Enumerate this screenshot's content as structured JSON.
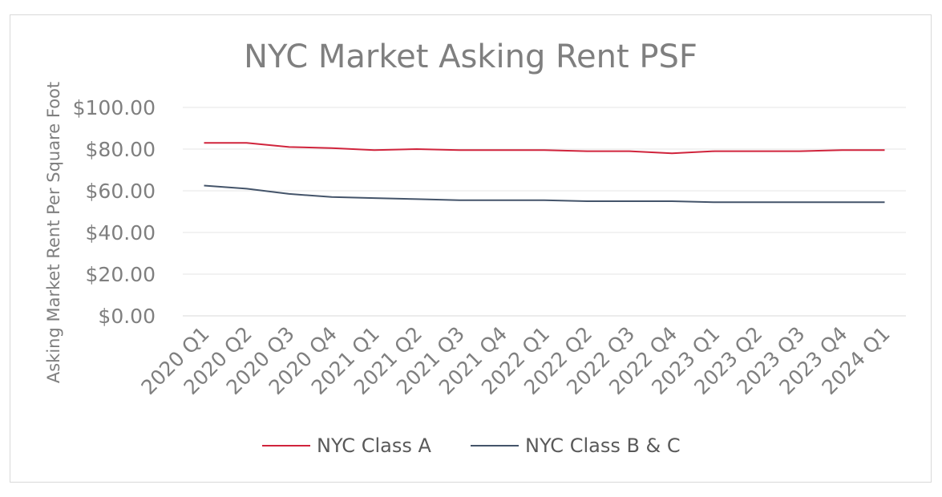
{
  "chart_data": {
    "type": "line",
    "title": "NYC Market Asking Rent PSF",
    "xlabel": "",
    "ylabel": "Asking Market Rent Per Square Foot",
    "categories": [
      "2020 Q1",
      "2020 Q2",
      "2020 Q3",
      "2020 Q4",
      "2021 Q1",
      "2021 Q2",
      "2021 Q3",
      "2021 Q4",
      "2022 Q1",
      "2022 Q2",
      "2022 Q3",
      "2022 Q4",
      "2023 Q1",
      "2023 Q2",
      "2023 Q3",
      "2023 Q4",
      "2024 Q1"
    ],
    "y_ticks": [
      "$0.00",
      "$20.00",
      "$40.00",
      "$60.00",
      "$80.00",
      "$100.00"
    ],
    "ylim": [
      0,
      100
    ],
    "grid": true,
    "legend_position": "bottom",
    "series": [
      {
        "name": "NYC Class A",
        "color": "#d0243c",
        "values": [
          83,
          83,
          81,
          80.5,
          79.5,
          80,
          79.5,
          79.5,
          79.5,
          79,
          79,
          78,
          79,
          79,
          79,
          79.5,
          79.5
        ]
      },
      {
        "name": "NYC Class B & C",
        "color": "#44546a",
        "values": [
          62.5,
          61,
          58.5,
          57,
          56.5,
          56,
          55.5,
          55.5,
          55.5,
          55,
          55,
          55,
          54.5,
          54.5,
          54.5,
          54.5,
          54.5
        ]
      }
    ]
  }
}
